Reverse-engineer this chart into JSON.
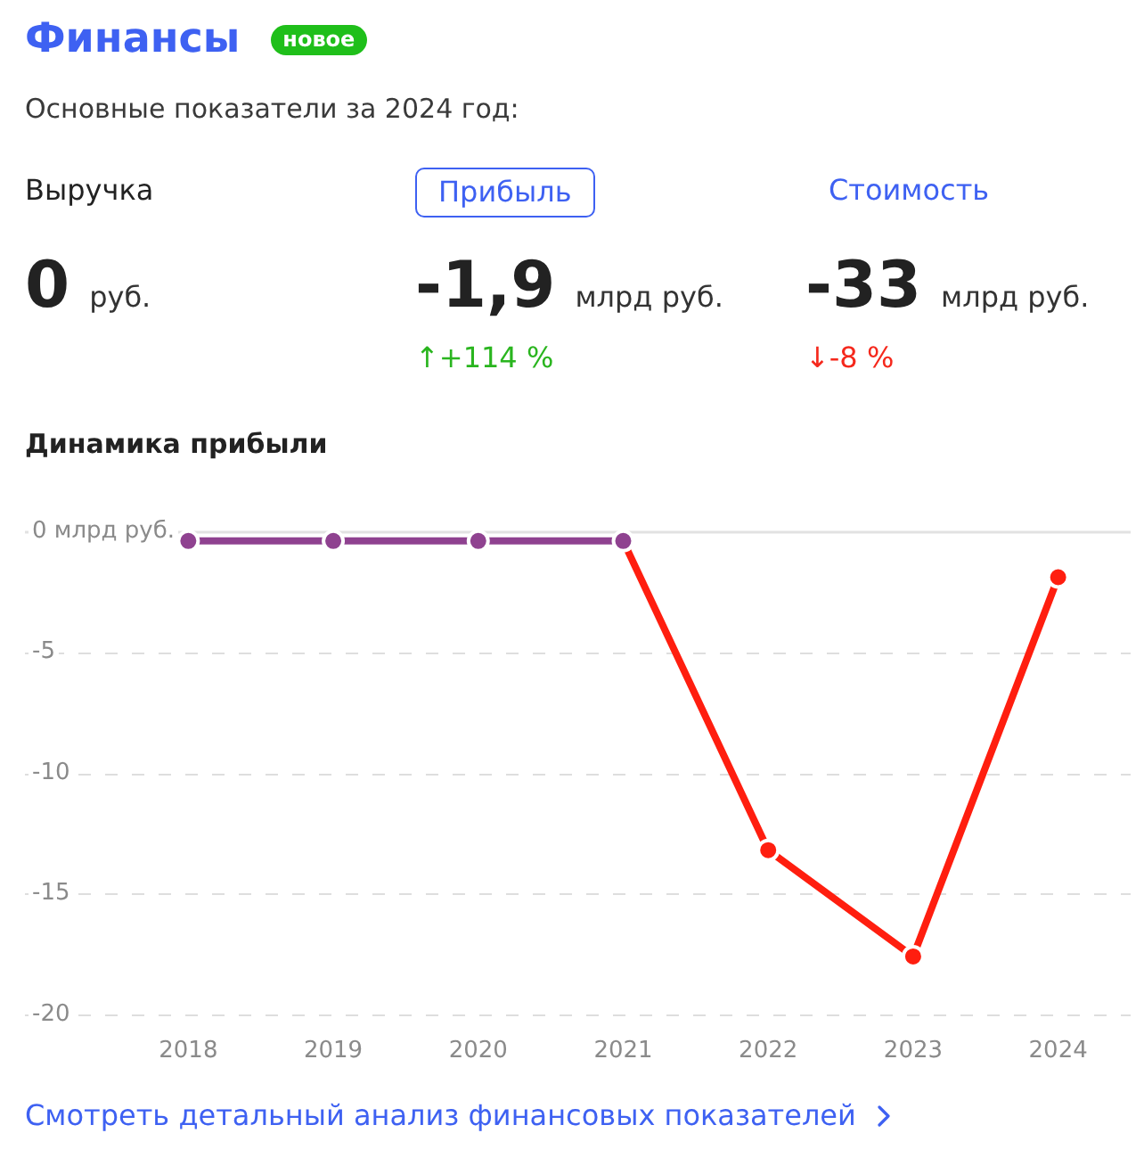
{
  "chart_data": [
    {
      "type": "other",
      "title": "Финансы",
      "subtitle": "Основные показатели за 2024 год:",
      "annotations": [
        "новое",
        "Выручка",
        "Прибыль",
        "Стоимость",
        "0",
        "руб.",
        "-1,9",
        "млрд руб.",
        "-33",
        "млрд руб.",
        "↑+114 %",
        "↓-8 %"
      ]
    },
    {
      "type": "line",
      "title": "Динамика прибыли",
      "categories": [
        "2018",
        "2019",
        "2020",
        "2021",
        "2022",
        "2023",
        "2024"
      ],
      "series": [
        {
          "color": "#8f4290",
          "values": [
            -0.4,
            -0.4,
            -0.4,
            -0.4,
            null,
            null,
            null
          ]
        },
        {
          "color": "#ff1e0f",
          "values": [
            null,
            null,
            null,
            -0.4,
            -13.2,
            -17.6,
            -1.9
          ]
        }
      ],
      "ylim": [
        -20,
        0
      ],
      "yticks": [
        {
          "value": 0,
          "label": "0 млрд руб."
        },
        -5,
        -10,
        -15,
        -20
      ],
      "grid": "y",
      "marker": "circle",
      "annotations": [
        "Смотреть детальный анализ финансовых показателей"
      ]
    }
  ]
}
